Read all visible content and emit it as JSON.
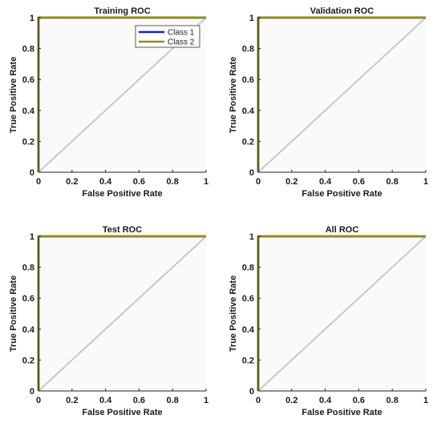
{
  "chart_data": [
    {
      "type": "line",
      "title": "Training ROC",
      "xlabel": "False Positive Rate",
      "ylabel": "True Positive Rate",
      "xlim": [
        0,
        1
      ],
      "ylim": [
        0,
        1
      ],
      "xticks": [
        "0",
        "0.2",
        "0.4",
        "0.6",
        "0.8",
        "1"
      ],
      "yticks": [
        "0",
        "0.2",
        "0.4",
        "0.6",
        "0.8",
        "1"
      ],
      "legend": "top-right",
      "series": [
        {
          "name": "Class 1",
          "color": "#1f1fd6",
          "x": [
            0,
            0,
            1
          ],
          "y": [
            0,
            1,
            1
          ]
        },
        {
          "name": "Class 2",
          "color": "#8c8c1e",
          "x": [
            0,
            0,
            1
          ],
          "y": [
            0,
            1,
            1
          ]
        }
      ],
      "reference_line": {
        "color": "#c8c8c8",
        "x": [
          0,
          1
        ],
        "y": [
          0,
          1
        ]
      }
    },
    {
      "type": "line",
      "title": "Validation ROC",
      "xlabel": "False Positive Rate",
      "ylabel": "True Positive Rate",
      "xlim": [
        0,
        1
      ],
      "ylim": [
        0,
        1
      ],
      "xticks": [
        "0",
        "0.2",
        "0.4",
        "0.6",
        "0.8",
        "1"
      ],
      "yticks": [
        "0",
        "0.2",
        "0.4",
        "0.6",
        "0.8",
        "1"
      ],
      "series": [
        {
          "color": "#1f1fd6",
          "x": [
            0,
            0,
            1
          ],
          "y": [
            0,
            1,
            1
          ]
        },
        {
          "color": "#8c8c1e",
          "x": [
            0,
            0,
            1
          ],
          "y": [
            0,
            1,
            1
          ]
        }
      ],
      "reference_line": {
        "color": "#c8c8c8",
        "x": [
          0,
          1
        ],
        "y": [
          0,
          1
        ]
      }
    },
    {
      "type": "line",
      "title": "Test ROC",
      "xlabel": "False Positive Rate",
      "ylabel": "True Positive Rate",
      "xlim": [
        0,
        1
      ],
      "ylim": [
        0,
        1
      ],
      "xticks": [
        "0",
        "0.2",
        "0.4",
        "0.6",
        "0.8",
        "1"
      ],
      "yticks": [
        "0",
        "0.2",
        "0.4",
        "0.6",
        "0.8",
        "1"
      ],
      "series": [
        {
          "color": "#1f1fd6",
          "x": [
            0,
            0,
            1
          ],
          "y": [
            0,
            1,
            1
          ]
        },
        {
          "color": "#8c8c1e",
          "x": [
            0,
            0,
            1
          ],
          "y": [
            0,
            1,
            1
          ]
        }
      ],
      "reference_line": {
        "color": "#c8c8c8",
        "x": [
          0,
          1
        ],
        "y": [
          0,
          1
        ]
      }
    },
    {
      "type": "line",
      "title": "All ROC",
      "xlabel": "False Positive Rate",
      "ylabel": "True Positive Rate",
      "xlim": [
        0,
        1
      ],
      "ylim": [
        0,
        1
      ],
      "xticks": [
        "0",
        "0.2",
        "0.4",
        "0.6",
        "0.8",
        "1"
      ],
      "yticks": [
        "0",
        "0.2",
        "0.4",
        "0.6",
        "0.8",
        "1"
      ],
      "series": [
        {
          "color": "#1f1fd6",
          "x": [
            0,
            0,
            1
          ],
          "y": [
            0,
            1,
            1
          ]
        },
        {
          "color": "#8c8c1e",
          "x": [
            0,
            0,
            1
          ],
          "y": [
            0,
            1,
            1
          ]
        }
      ],
      "reference_line": {
        "color": "#c8c8c8",
        "x": [
          0,
          1
        ],
        "y": [
          0,
          1
        ]
      }
    }
  ]
}
